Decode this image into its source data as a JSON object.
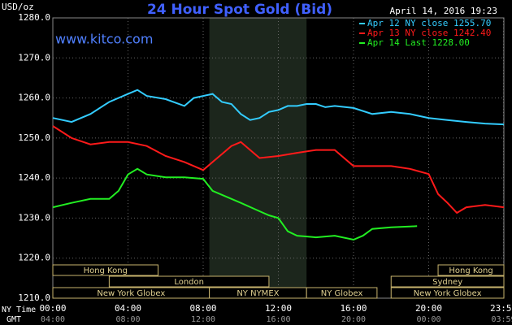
{
  "chart_data": {
    "type": "line",
    "title": "24 Hour Spot Gold (Bid)",
    "watermark": "www.kitco.com",
    "timestamp": "April 14, 2016 19:23",
    "y_label": "USD/oz",
    "x_label": "NY Time",
    "x2_label": "GMT",
    "xlim": [
      0,
      24
    ],
    "ylim": [
      1210,
      1280
    ],
    "grid": true,
    "yticks": [
      {
        "value": 1210,
        "label": "1210.0"
      },
      {
        "value": 1220,
        "label": "1220.0"
      },
      {
        "value": 1230,
        "label": "1230.0"
      },
      {
        "value": 1240,
        "label": "1240.0"
      },
      {
        "value": 1250,
        "label": "1250.0"
      },
      {
        "value": 1260,
        "label": "1260.0"
      },
      {
        "value": 1270,
        "label": "1270.0"
      },
      {
        "value": 1280,
        "label": "1280.0"
      }
    ],
    "xticks": [
      {
        "value": 0,
        "label": "00:00"
      },
      {
        "value": 4,
        "label": "04:00"
      },
      {
        "value": 8,
        "label": "08:00"
      },
      {
        "value": 12,
        "label": "12:00"
      },
      {
        "value": 16,
        "label": "16:00"
      },
      {
        "value": 20,
        "label": "20:00"
      },
      {
        "value": 23.98,
        "label": "23:59"
      }
    ],
    "gmt_ticks": [
      "04:00",
      "08:00",
      "12:00",
      "16:00",
      "20:00",
      "00:00",
      "03:59"
    ],
    "series": [
      {
        "name": "Apr 12 NY close 1255.70",
        "color": "#33ccff",
        "x": [
          0,
          1,
          2,
          3,
          4,
          4.5,
          5,
          6,
          7,
          7.5,
          8,
          8.5,
          9,
          9.5,
          10,
          10.5,
          11,
          11.5,
          12,
          12.5,
          13,
          13.5,
          14,
          14.5,
          15,
          16,
          17,
          18,
          19,
          20,
          21,
          22,
          23,
          24
        ],
        "values": [
          1255,
          1254,
          1256,
          1259,
          1261,
          1262,
          1260.5,
          1259.7,
          1258,
          1260,
          1260.5,
          1261,
          1259,
          1258.5,
          1256,
          1254.5,
          1255,
          1256.5,
          1257,
          1258,
          1258,
          1258.5,
          1258.5,
          1257.7,
          1258,
          1257.5,
          1256,
          1256.5,
          1256,
          1255,
          1254.5,
          1254,
          1253.6,
          1253.4
        ]
      },
      {
        "name": "Apr 13 NY close 1242.40",
        "color": "#ff1a1a",
        "x": [
          0,
          1,
          2,
          3,
          4,
          5,
          6,
          7,
          8,
          8.5,
          9,
          9.5,
          10,
          10.5,
          11,
          12,
          13,
          14,
          15,
          15.5,
          16,
          17,
          18,
          19,
          20,
          20.5,
          21,
          21.5,
          22,
          23,
          24
        ],
        "values": [
          1253,
          1250,
          1248.4,
          1249,
          1249,
          1248,
          1245.5,
          1244,
          1242,
          1244,
          1246,
          1248,
          1249,
          1247,
          1245,
          1245.5,
          1246.3,
          1247,
          1247,
          1245,
          1243,
          1243,
          1243,
          1242.3,
          1241,
          1236,
          1233.8,
          1231.3,
          1232.7,
          1233.3,
          1232.7
        ]
      },
      {
        "name": "Apr 14 Last 1228.00",
        "color": "#22ee22",
        "x": [
          0,
          1,
          2,
          3,
          3.5,
          4,
          4.5,
          5,
          6,
          7,
          8,
          8.5,
          9,
          10,
          11,
          11.5,
          12,
          12.5,
          13,
          14,
          15,
          16,
          16.5,
          17,
          18,
          19,
          19.38
        ],
        "values": [
          1232.7,
          1233.8,
          1234.8,
          1234.8,
          1236.8,
          1240.9,
          1242.3,
          1240.9,
          1240.2,
          1240.2,
          1239.8,
          1236.8,
          1235.8,
          1233.8,
          1231.7,
          1230.7,
          1230,
          1226.7,
          1225.6,
          1225.2,
          1225.6,
          1224.6,
          1225.6,
          1227.3,
          1227.7,
          1227.9,
          1228
        ]
      }
    ],
    "sessions": [
      {
        "label": "Hong Kong",
        "row": 1,
        "start": 0,
        "end": 5.6
      },
      {
        "label": "Hong Kong",
        "row": 1,
        "start": 20.5,
        "end": 24
      },
      {
        "label": "London",
        "row": 2,
        "start": 3,
        "end": 11.5
      },
      {
        "label": "Sydney",
        "row": 2,
        "start": 18,
        "end": 24
      },
      {
        "label": "New York Globex",
        "row": 3,
        "start": 0,
        "end": 8.33
      },
      {
        "label": "NY NYMEX",
        "row": 3,
        "start": 8.33,
        "end": 13.5,
        "highlight": true
      },
      {
        "label": "NY Globex",
        "row": 3,
        "start": 13.5,
        "end": 17.25
      },
      {
        "label": "New York Globex",
        "row": 3,
        "start": 18,
        "end": 24
      }
    ]
  }
}
